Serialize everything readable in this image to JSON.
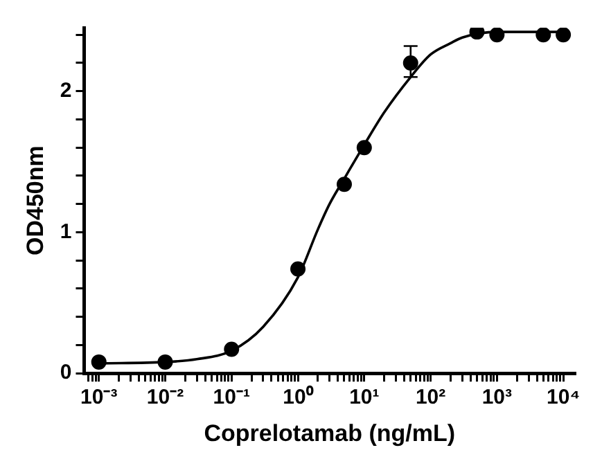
{
  "chart_data": {
    "type": "scatter",
    "xlabel": "Coprelotamab (ng/mL)",
    "ylabel": "OD450nm",
    "log": "x",
    "grid": false,
    "legend": false,
    "marker": "circle",
    "xlim": [
      0.0006,
      15000
    ],
    "ylim": [
      0,
      2.45
    ],
    "xticks": [
      {
        "value": 0.0007,
        "label": null
      },
      {
        "value": 0.0008,
        "label": null
      },
      {
        "value": 0.0009,
        "label": null
      },
      {
        "value": 0.001,
        "label": "10⁻³"
      },
      {
        "value": 0.002,
        "label": null
      },
      {
        "value": 0.003,
        "label": null
      },
      {
        "value": 0.004,
        "label": null
      },
      {
        "value": 0.005,
        "label": null
      },
      {
        "value": 0.006,
        "label": null
      },
      {
        "value": 0.007,
        "label": null
      },
      {
        "value": 0.008,
        "label": null
      },
      {
        "value": 0.009,
        "label": null
      },
      {
        "value": 0.01,
        "label": "10⁻²"
      },
      {
        "value": 0.02,
        "label": null
      },
      {
        "value": 0.03,
        "label": null
      },
      {
        "value": 0.04,
        "label": null
      },
      {
        "value": 0.05,
        "label": null
      },
      {
        "value": 0.06,
        "label": null
      },
      {
        "value": 0.07,
        "label": null
      },
      {
        "value": 0.08,
        "label": null
      },
      {
        "value": 0.09,
        "label": null
      },
      {
        "value": 0.1,
        "label": "10⁻¹"
      },
      {
        "value": 0.2,
        "label": null
      },
      {
        "value": 0.3,
        "label": null
      },
      {
        "value": 0.4,
        "label": null
      },
      {
        "value": 0.5,
        "label": null
      },
      {
        "value": 0.6,
        "label": null
      },
      {
        "value": 0.7,
        "label": null
      },
      {
        "value": 0.8,
        "label": null
      },
      {
        "value": 0.9,
        "label": null
      },
      {
        "value": 1,
        "label": "10⁰"
      },
      {
        "value": 2,
        "label": null
      },
      {
        "value": 3,
        "label": null
      },
      {
        "value": 4,
        "label": null
      },
      {
        "value": 5,
        "label": null
      },
      {
        "value": 6,
        "label": null
      },
      {
        "value": 7,
        "label": null
      },
      {
        "value": 8,
        "label": null
      },
      {
        "value": 9,
        "label": null
      },
      {
        "value": 10,
        "label": "10¹"
      },
      {
        "value": 20,
        "label": null
      },
      {
        "value": 30,
        "label": null
      },
      {
        "value": 40,
        "label": null
      },
      {
        "value": 50,
        "label": null
      },
      {
        "value": 60,
        "label": null
      },
      {
        "value": 70,
        "label": null
      },
      {
        "value": 80,
        "label": null
      },
      {
        "value": 90,
        "label": null
      },
      {
        "value": 100,
        "label": "10²"
      },
      {
        "value": 200,
        "label": null
      },
      {
        "value": 300,
        "label": null
      },
      {
        "value": 400,
        "label": null
      },
      {
        "value": 500,
        "label": null
      },
      {
        "value": 600,
        "label": null
      },
      {
        "value": 700,
        "label": null
      },
      {
        "value": 800,
        "label": null
      },
      {
        "value": 900,
        "label": null
      },
      {
        "value": 1000,
        "label": "10³"
      },
      {
        "value": 2000,
        "label": null
      },
      {
        "value": 3000,
        "label": null
      },
      {
        "value": 4000,
        "label": null
      },
      {
        "value": 5000,
        "label": null
      },
      {
        "value": 6000,
        "label": null
      },
      {
        "value": 7000,
        "label": null
      },
      {
        "value": 8000,
        "label": null
      },
      {
        "value": 9000,
        "label": null
      },
      {
        "value": 10000,
        "label": "10⁴"
      }
    ],
    "yticks": [
      0,
      {
        "value": 0.2,
        "label": null
      },
      {
        "value": 0.4,
        "label": null
      },
      {
        "value": 0.6,
        "label": null
      },
      {
        "value": 0.8,
        "label": null
      },
      1,
      {
        "value": 1.2,
        "label": null
      },
      {
        "value": 1.4,
        "label": null
      },
      {
        "value": 1.6,
        "label": null
      },
      {
        "value": 1.8,
        "label": null
      },
      2,
      {
        "value": 2.2,
        "label": null
      },
      {
        "value": 2.4,
        "label": null
      }
    ],
    "series": [
      {
        "color": "#000000",
        "x": [
          0.001,
          0.01,
          0.1,
          1,
          5,
          10,
          50,
          500,
          1000,
          5000,
          10000
        ],
        "values": [
          0.08,
          0.08,
          0.17,
          0.74,
          1.34,
          1.6,
          2.2,
          2.42,
          2.4,
          2.4,
          2.4
        ],
        "errors": [
          null,
          null,
          null,
          null,
          null,
          null,
          [
            2.1,
            2.32
          ],
          null,
          null,
          null,
          null
        ]
      },
      {
        "type": "line",
        "color": "#000000",
        "marker": "none",
        "x": [
          0.001,
          0.01,
          0.03,
          0.1,
          0.3,
          1,
          2,
          3,
          5,
          10,
          20,
          50,
          100,
          200,
          300,
          1000,
          10000
        ],
        "values": [
          0.07,
          0.08,
          0.1,
          0.16,
          0.33,
          0.68,
          1.02,
          1.2,
          1.38,
          1.62,
          1.85,
          2.1,
          2.26,
          2.34,
          2.38,
          2.42,
          2.42
        ]
      }
    ]
  }
}
